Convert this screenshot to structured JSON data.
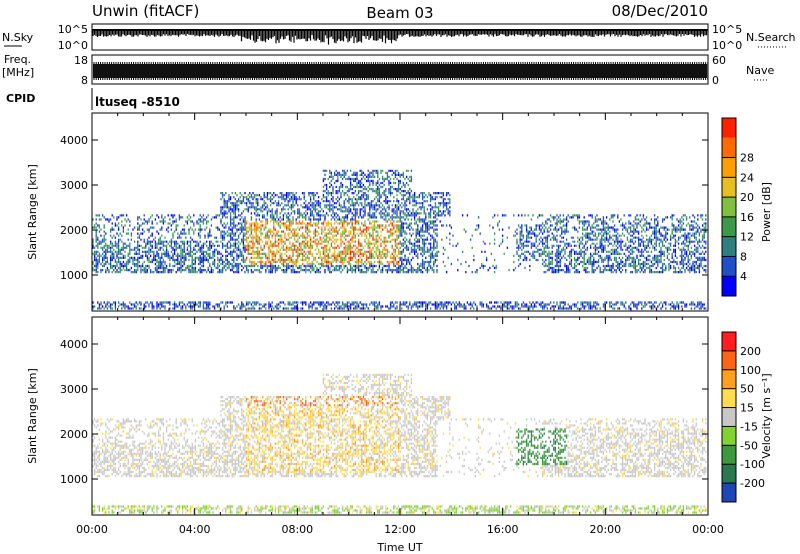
{
  "header": {
    "station": "Unwin (fitACF)",
    "beam": "Beam 03",
    "date": "08/Dec/2010"
  },
  "top_panels": {
    "nsky_label": "N.Sky",
    "nsky_ticks": [
      "10^5",
      "10^0"
    ],
    "nsearch_label": "N.Search",
    "nsearch_ticks": [
      "10^5",
      "10^0"
    ],
    "freq_label_1": "Freq.",
    "freq_label_2": "[MHz]",
    "freq_ticks": [
      "18",
      "8"
    ],
    "nave_label": "Nave",
    "nave_ticks": [
      "60",
      "0"
    ],
    "cpid_label": "CPID",
    "cpid_text": "ltuseq -8510"
  },
  "chart_data": [
    {
      "type": "heatmap",
      "name": "power",
      "ylabel": "Slant Range [km]",
      "yticks": [
        1000,
        2000,
        3000,
        4000
      ],
      "ylim": [
        200,
        4600
      ],
      "xticks": [
        "00:00",
        "04:00",
        "08:00",
        "12:00",
        "16:00",
        "20:00",
        "00:00"
      ],
      "xlim_hours": [
        0,
        24
      ],
      "colorbar": {
        "label": "Power [dB]",
        "ticks": [
          "4",
          "8",
          "12",
          "16",
          "20",
          "24",
          "28"
        ],
        "colors": [
          "#0000ff",
          "#1e50c8",
          "#2f7f7f",
          "#3a9a4a",
          "#7fc040",
          "#e6c020",
          "#ffa000",
          "#ff6a00",
          "#ff2000"
        ]
      }
    },
    {
      "type": "heatmap",
      "name": "velocity",
      "ylabel": "Slant Range [km]",
      "yticks": [
        1000,
        2000,
        3000,
        4000
      ],
      "ylim": [
        200,
        4600
      ],
      "xticks": [
        "00:00",
        "04:00",
        "08:00",
        "12:00",
        "16:00",
        "20:00",
        "00:00"
      ],
      "xlim_hours": [
        0,
        24
      ],
      "xlabel": "Time UT",
      "colorbar": {
        "label": "Velocity [m s⁻¹]",
        "ticks": [
          "200",
          "100",
          "50",
          "15",
          "-15",
          "-50",
          "-100",
          "-200"
        ],
        "colors": [
          "#1e46b4",
          "#287850",
          "#3c9a3c",
          "#82d232",
          "#c8c8c8",
          "#ffdc50",
          "#ffa01e",
          "#ff6414",
          "#ff1e1e"
        ]
      }
    }
  ]
}
